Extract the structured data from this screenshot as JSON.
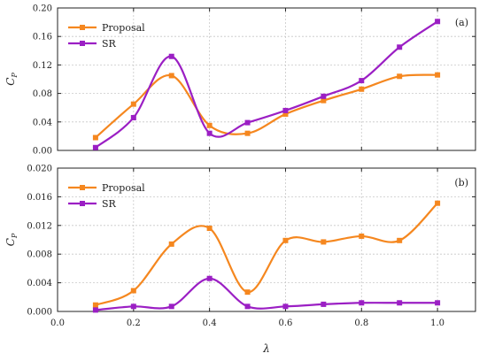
{
  "chart_data": [
    {
      "type": "line",
      "panel_label": "(a)",
      "ylabel": "C",
      "ylabel_sub": "P",
      "ylim": [
        0,
        0.2
      ],
      "yticks": [
        0,
        0.04,
        0.08,
        0.12,
        0.16,
        0.2
      ],
      "ytick_labels": [
        "0.00",
        "0.04",
        "0.08",
        "0.12",
        "0.16",
        "0.20"
      ],
      "xlim": [
        0,
        1.1
      ],
      "grid": true,
      "legend_position": "top-left",
      "series": [
        {
          "name": "Proposal",
          "color": "#f5871f",
          "x": [
            0.1,
            0.2,
            0.3,
            0.4,
            0.5,
            0.6,
            0.7,
            0.8,
            0.9,
            1.0
          ],
          "values": [
            0.018,
            0.065,
            0.105,
            0.035,
            0.024,
            0.051,
            0.07,
            0.086,
            0.104,
            0.106
          ]
        },
        {
          "name": "SR",
          "color": "#9b1fc4",
          "x": [
            0.1,
            0.2,
            0.3,
            0.4,
            0.5,
            0.6,
            0.7,
            0.8,
            0.9,
            1.0
          ],
          "values": [
            0.004,
            0.046,
            0.132,
            0.024,
            0.039,
            0.056,
            0.076,
            0.098,
            0.145,
            0.181
          ]
        }
      ]
    },
    {
      "type": "line",
      "panel_label": "(b)",
      "ylabel": "C",
      "ylabel_sub": "P",
      "xlabel": "λ",
      "ylim": [
        0,
        0.02
      ],
      "yticks": [
        0,
        0.004,
        0.008,
        0.012,
        0.016,
        0.02
      ],
      "ytick_labels": [
        "0.000",
        "0.004",
        "0.008",
        "0.012",
        "0.016",
        "0.020"
      ],
      "xlim": [
        0,
        1.1
      ],
      "xticks": [
        0,
        0.2,
        0.4,
        0.6,
        0.8,
        1.0
      ],
      "xtick_labels": [
        "0.0",
        "0.2",
        "0.4",
        "0.6",
        "0.8",
        "1.0"
      ],
      "grid": true,
      "legend_position": "top-left",
      "series": [
        {
          "name": "Proposal",
          "color": "#f5871f",
          "x": [
            0.1,
            0.2,
            0.3,
            0.4,
            0.5,
            0.6,
            0.7,
            0.8,
            0.9,
            1.0
          ],
          "values": [
            0.0009,
            0.0029,
            0.0094,
            0.0116,
            0.0027,
            0.0099,
            0.0097,
            0.0105,
            0.0099,
            0.0151
          ]
        },
        {
          "name": "SR",
          "color": "#9b1fc4",
          "x": [
            0.1,
            0.2,
            0.3,
            0.4,
            0.5,
            0.6,
            0.7,
            0.8,
            0.9,
            1.0
          ],
          "values": [
            0.0002,
            0.0007,
            0.0007,
            0.0046,
            0.0007,
            0.0007,
            0.001,
            0.0012,
            0.0012,
            0.0012
          ]
        }
      ]
    }
  ]
}
